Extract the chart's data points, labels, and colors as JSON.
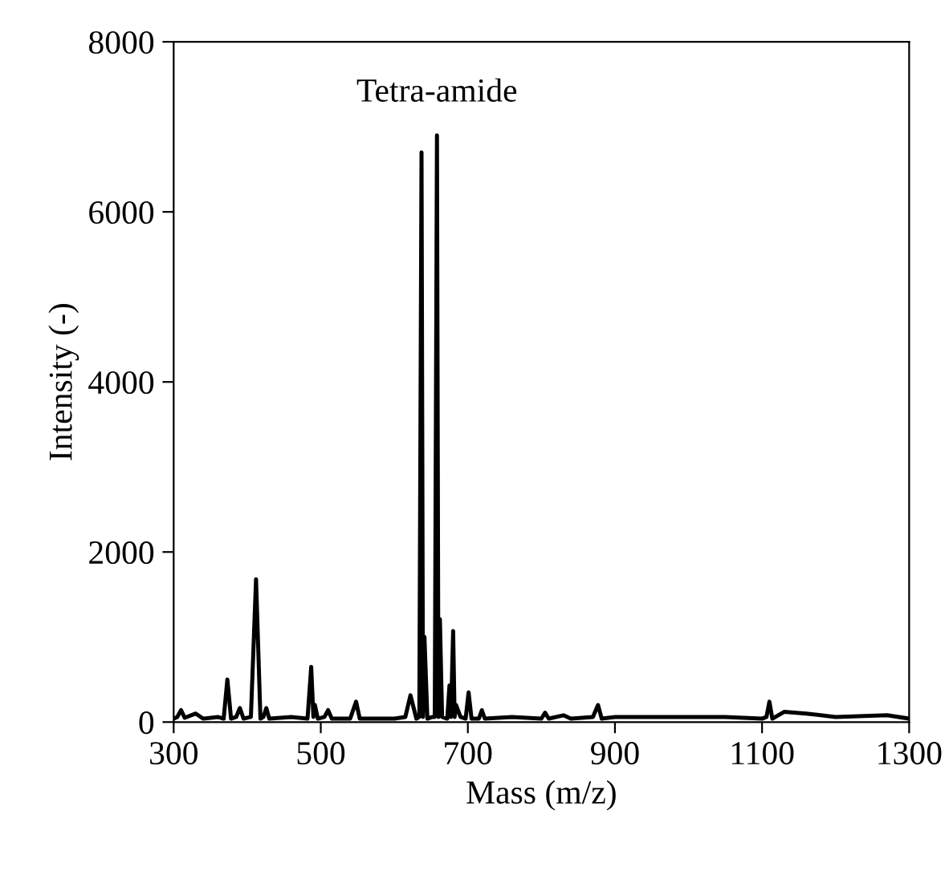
{
  "chart_data": {
    "type": "line",
    "xlabel": "Mass (m/z)",
    "ylabel": "Intensity (-)",
    "x": [
      300,
      305,
      310,
      315,
      330,
      340,
      360,
      368,
      373,
      378,
      385,
      390,
      395,
      405,
      412,
      418,
      422,
      426,
      430,
      460,
      482,
      487,
      490,
      492,
      496,
      505,
      510,
      515,
      540,
      548,
      553,
      600,
      615,
      622,
      630,
      634,
      637,
      639,
      641,
      645,
      652,
      655,
      658,
      660,
      662,
      665,
      672,
      675,
      677,
      680,
      682,
      684,
      690,
      697,
      701,
      705,
      715,
      719,
      723,
      760,
      800,
      805,
      810,
      830,
      840,
      870,
      877,
      882,
      900,
      950,
      1000,
      1050,
      1100,
      1106,
      1110,
      1114,
      1130,
      1160,
      1200,
      1270,
      1300
    ],
    "series": [
      {
        "color": "#000000",
        "values": [
          40,
          60,
          140,
          50,
          100,
          40,
          60,
          40,
          500,
          40,
          60,
          165,
          40,
          60,
          1680,
          40,
          60,
          165,
          40,
          60,
          40,
          650,
          60,
          200,
          40,
          60,
          140,
          40,
          40,
          240,
          40,
          40,
          60,
          315,
          40,
          60,
          6700,
          60,
          1000,
          40,
          60,
          60,
          6900,
          60,
          1210,
          60,
          40,
          430,
          60,
          1070,
          60,
          200,
          60,
          40,
          350,
          40,
          40,
          140,
          40,
          60,
          40,
          110,
          40,
          80,
          40,
          60,
          200,
          40,
          60,
          60,
          60,
          60,
          40,
          60,
          240,
          40,
          120,
          100,
          60,
          80,
          40
        ]
      }
    ],
    "xlim": [
      300,
      1300
    ],
    "xticks": [
      300,
      500,
      700,
      900,
      1100,
      1300
    ],
    "ylim": [
      0,
      8000
    ],
    "yticks": [
      0,
      2000,
      4000,
      6000,
      8000
    ],
    "grid": false,
    "legend": false,
    "marker": "none",
    "line_style": "solid",
    "annotations": [
      {
        "text": "Tetra-amide",
        "x": 658,
        "y": 6900
      }
    ]
  }
}
